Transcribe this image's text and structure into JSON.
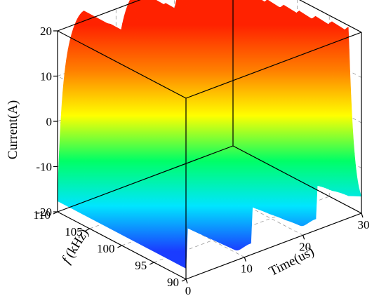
{
  "chart_data": {
    "type": "surface3d",
    "title": "",
    "zlabel": "Current(A)",
    "xlabel": "Time(us)",
    "ylabel_italic": "f",
    "ylabel_rest": " (kHz)",
    "xlim": [
      0,
      30
    ],
    "ylim": [
      90,
      110
    ],
    "zlim": [
      -20,
      20
    ],
    "x_ticks": [
      "0",
      "10",
      "20",
      "30"
    ],
    "y_ticks": [
      "90",
      "95",
      "100",
      "105",
      "110"
    ],
    "z_ticks": [
      "-20",
      "-10",
      "0",
      "10",
      "20"
    ],
    "amplitude_A": 20,
    "frequency_range_kHz": [
      90,
      110
    ],
    "colormap": [
      "#1a3cff",
      "#00e5ff",
      "#00ff66",
      "#ffff00",
      "#ff7f00",
      "#ff2200"
    ],
    "grid": true
  }
}
